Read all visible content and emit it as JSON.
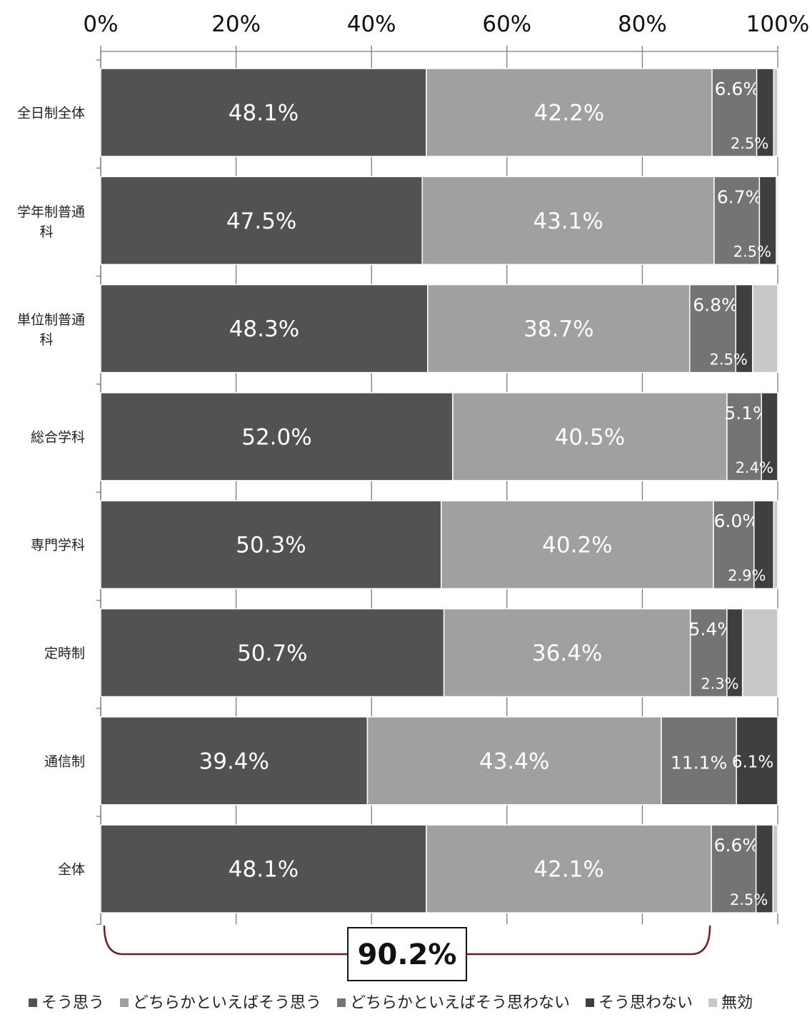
{
  "chart_data": {
    "type": "bar",
    "orientation": "horizontal",
    "stacked": true,
    "categories": [
      "全日制全体",
      "学年制普通科",
      "単位制普通科",
      "総合学科",
      "専門学科",
      "定時制",
      "通信制",
      "全体"
    ],
    "series": [
      {
        "name": "そう思う",
        "color": "#525252",
        "values": [
          48.1,
          47.5,
          48.3,
          52.0,
          50.3,
          50.7,
          39.4,
          48.1
        ]
      },
      {
        "name": "どちらかといえばそう思う",
        "color": "#a0a0a0",
        "values": [
          42.2,
          43.1,
          38.7,
          40.5,
          40.2,
          36.4,
          43.4,
          42.1
        ]
      },
      {
        "name": "どちらかといえばそう思わない",
        "color": "#747474",
        "values": [
          6.6,
          6.7,
          6.8,
          5.1,
          6.0,
          5.4,
          11.1,
          6.6
        ]
      },
      {
        "name": "そう思わない",
        "color": "#3f3f3f",
        "values": [
          2.5,
          2.5,
          2.5,
          2.4,
          2.9,
          2.3,
          6.1,
          2.5
        ]
      },
      {
        "name": "無効",
        "color": "#c8c8c8",
        "values": [
          0.6,
          0.2,
          3.7,
          0.0,
          0.6,
          5.2,
          0.0,
          0.7
        ]
      }
    ],
    "data_labels": [
      [
        "48.1%",
        "42.2%",
        "6.6%",
        "2.5%"
      ],
      [
        "47.5%",
        "43.1%",
        "6.7%",
        "2.5%"
      ],
      [
        "48.3%",
        "38.7%",
        "6.8%",
        "2.5%"
      ],
      [
        "52.0%",
        "40.5%",
        "5.1%",
        "2.4%"
      ],
      [
        "50.3%",
        "40.2%",
        "6.0%",
        "2.9%"
      ],
      [
        "50.7%",
        "36.4%",
        "5.4%",
        "2.3%"
      ],
      [
        "39.4%",
        "43.4%",
        "11.1%",
        "6.1%"
      ],
      [
        "48.1%",
        "42.1%",
        "6.6%",
        "2.5%"
      ]
    ],
    "x_ticks": [
      "0%",
      "20%",
      "40%",
      "60%",
      "80%",
      "100%"
    ],
    "xlim": [
      0,
      100
    ],
    "x_axis_position": "top",
    "grid": true,
    "legend_position": "bottom",
    "annotation": {
      "text": "90.2%",
      "span": [
        0,
        90.2
      ],
      "category": "全体"
    }
  }
}
